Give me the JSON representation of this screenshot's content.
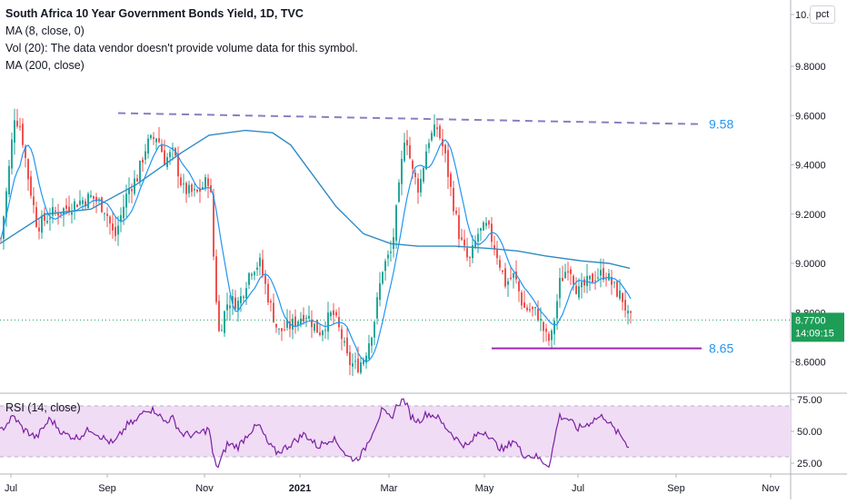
{
  "chart_data": {
    "type": "candlestick",
    "title": "South Africa 10 Year Government Bonds Yield, 1D, TVC",
    "indicators": [
      "MA (8, close, 0)",
      "Vol (20): The data vendor doesn't provide volume data for this symbol.",
      "MA (200, close)"
    ],
    "scale_button": "pct",
    "price_axis": {
      "ticks": [
        "10.0000",
        "9.8000",
        "9.6000",
        "9.4000",
        "9.2000",
        "9.0000",
        "8.8000",
        "8.6000"
      ],
      "ylim": [
        8.57,
        10.02
      ],
      "top_tick_label": "10.0",
      "last_price": "8.7700",
      "countdown": "14:09:15"
    },
    "x_axis": {
      "labels": [
        "Jul",
        "Sep",
        "Nov",
        "2021",
        "Mar",
        "May",
        "Jul",
        "Sep",
        "Nov"
      ]
    },
    "price_path": [
      [
        0,
        9.1
      ],
      [
        8,
        9.35
      ],
      [
        15,
        9.6
      ],
      [
        22,
        9.55
      ],
      [
        30,
        9.35
      ],
      [
        40,
        9.15
      ],
      [
        55,
        9.2
      ],
      [
        70,
        9.22
      ],
      [
        85,
        9.25
      ],
      [
        100,
        9.27
      ],
      [
        115,
        9.22
      ],
      [
        125,
        9.1
      ],
      [
        140,
        9.3
      ],
      [
        150,
        9.35
      ],
      [
        160,
        9.48
      ],
      [
        172,
        9.52
      ],
      [
        180,
        9.42
      ],
      [
        190,
        9.45
      ],
      [
        200,
        9.3
      ],
      [
        215,
        9.28
      ],
      [
        230,
        9.35
      ],
      [
        235,
        8.95
      ],
      [
        240,
        8.72
      ],
      [
        250,
        8.85
      ],
      [
        262,
        8.84
      ],
      [
        275,
        8.98
      ],
      [
        285,
        9.0
      ],
      [
        295,
        8.85
      ],
      [
        305,
        8.72
      ],
      [
        320,
        8.75
      ],
      [
        335,
        8.8
      ],
      [
        350,
        8.72
      ],
      [
        365,
        8.8
      ],
      [
        375,
        8.7
      ],
      [
        382,
        8.6
      ],
      [
        392,
        8.58
      ],
      [
        400,
        8.62
      ],
      [
        410,
        8.75
      ],
      [
        420,
        8.98
      ],
      [
        430,
        9.05
      ],
      [
        438,
        9.3
      ],
      [
        445,
        9.55
      ],
      [
        452,
        9.38
      ],
      [
        460,
        9.3
      ],
      [
        470,
        9.5
      ],
      [
        480,
        9.55
      ],
      [
        488,
        9.45
      ],
      [
        495,
        9.3
      ],
      [
        505,
        9.1
      ],
      [
        515,
        9.0
      ],
      [
        525,
        9.12
      ],
      [
        535,
        9.15
      ],
      [
        545,
        9.05
      ],
      [
        555,
        8.92
      ],
      [
        565,
        8.95
      ],
      [
        575,
        8.82
      ],
      [
        590,
        8.8
      ],
      [
        600,
        8.7
      ],
      [
        605,
        8.68
      ],
      [
        615,
        8.92
      ],
      [
        625,
        9.0
      ],
      [
        635,
        8.88
      ],
      [
        645,
        8.92
      ],
      [
        655,
        8.95
      ],
      [
        665,
        8.96
      ],
      [
        675,
        8.9
      ],
      [
        685,
        8.85
      ],
      [
        690,
        8.78
      ],
      [
        693,
        8.77
      ]
    ],
    "ma200_path": [
      [
        0,
        9.08
      ],
      [
        50,
        9.2
      ],
      [
        100,
        9.22
      ],
      [
        150,
        9.32
      ],
      [
        200,
        9.45
      ],
      [
        230,
        9.52
      ],
      [
        270,
        9.54
      ],
      [
        300,
        9.53
      ],
      [
        320,
        9.48
      ],
      [
        340,
        9.38
      ],
      [
        370,
        9.23
      ],
      [
        400,
        9.12
      ],
      [
        430,
        9.08
      ],
      [
        460,
        9.07
      ],
      [
        500,
        9.07
      ],
      [
        540,
        9.06
      ],
      [
        570,
        9.05
      ],
      [
        600,
        9.03
      ],
      [
        640,
        9.01
      ],
      [
        670,
        9.0
      ],
      [
        693,
        8.98
      ]
    ],
    "annotations": [
      {
        "label": "9.58",
        "type": "dashed trend line",
        "from": [
          130,
          9.61
        ],
        "to": [
          772,
          9.565
        ],
        "color": "#8e7cc3"
      },
      {
        "label": "8.65",
        "type": "horizontal line",
        "from": [
          541,
          8.655
        ],
        "to": [
          772,
          8.655
        ],
        "color": "#9c27b0"
      }
    ],
    "rsi": {
      "label": "RSI (14, close)",
      "ticks": [
        "75.00",
        "50.00",
        "25.00"
      ],
      "ylim": [
        20,
        78
      ],
      "band": [
        30,
        70
      ],
      "path": [
        [
          0,
          50
        ],
        [
          15,
          62
        ],
        [
          25,
          52
        ],
        [
          40,
          45
        ],
        [
          55,
          60
        ],
        [
          70,
          48
        ],
        [
          85,
          45
        ],
        [
          100,
          52
        ],
        [
          115,
          44
        ],
        [
          125,
          40
        ],
        [
          140,
          55
        ],
        [
          150,
          58
        ],
        [
          160,
          68
        ],
        [
          172,
          66
        ],
        [
          180,
          58
        ],
        [
          190,
          60
        ],
        [
          200,
          48
        ],
        [
          215,
          47
        ],
        [
          230,
          52
        ],
        [
          235,
          28
        ],
        [
          240,
          22
        ],
        [
          250,
          40
        ],
        [
          262,
          38
        ],
        [
          275,
          50
        ],
        [
          285,
          55
        ],
        [
          295,
          40
        ],
        [
          305,
          33
        ],
        [
          320,
          40
        ],
        [
          335,
          48
        ],
        [
          350,
          38
        ],
        [
          365,
          45
        ],
        [
          375,
          38
        ],
        [
          382,
          30
        ],
        [
          392,
          28
        ],
        [
          400,
          34
        ],
        [
          410,
          50
        ],
        [
          420,
          66
        ],
        [
          430,
          60
        ],
        [
          438,
          72
        ],
        [
          445,
          75
        ],
        [
          452,
          62
        ],
        [
          460,
          58
        ],
        [
          470,
          64
        ],
        [
          480,
          62
        ],
        [
          488,
          55
        ],
        [
          495,
          50
        ],
        [
          505,
          42
        ],
        [
          515,
          38
        ],
        [
          525,
          48
        ],
        [
          535,
          50
        ],
        [
          545,
          40
        ],
        [
          555,
          35
        ],
        [
          565,
          44
        ],
        [
          575,
          32
        ],
        [
          590,
          30
        ],
        [
          600,
          25
        ],
        [
          605,
          24
        ],
        [
          615,
          62
        ],
        [
          625,
          60
        ],
        [
          635,
          52
        ],
        [
          645,
          55
        ],
        [
          655,
          60
        ],
        [
          665,
          62
        ],
        [
          675,
          52
        ],
        [
          685,
          45
        ],
        [
          690,
          40
        ],
        [
          693,
          38
        ]
      ]
    },
    "colors": {
      "up": "#26a69a",
      "down": "#ef5350",
      "ma8": "#2196f3",
      "ma200": "#2f8bc4",
      "rsi_line": "#7b1fa2",
      "rsi_band": "#f0dcf5",
      "last_price": "#1e9d57",
      "annotation_text": "#2196f3"
    }
  }
}
